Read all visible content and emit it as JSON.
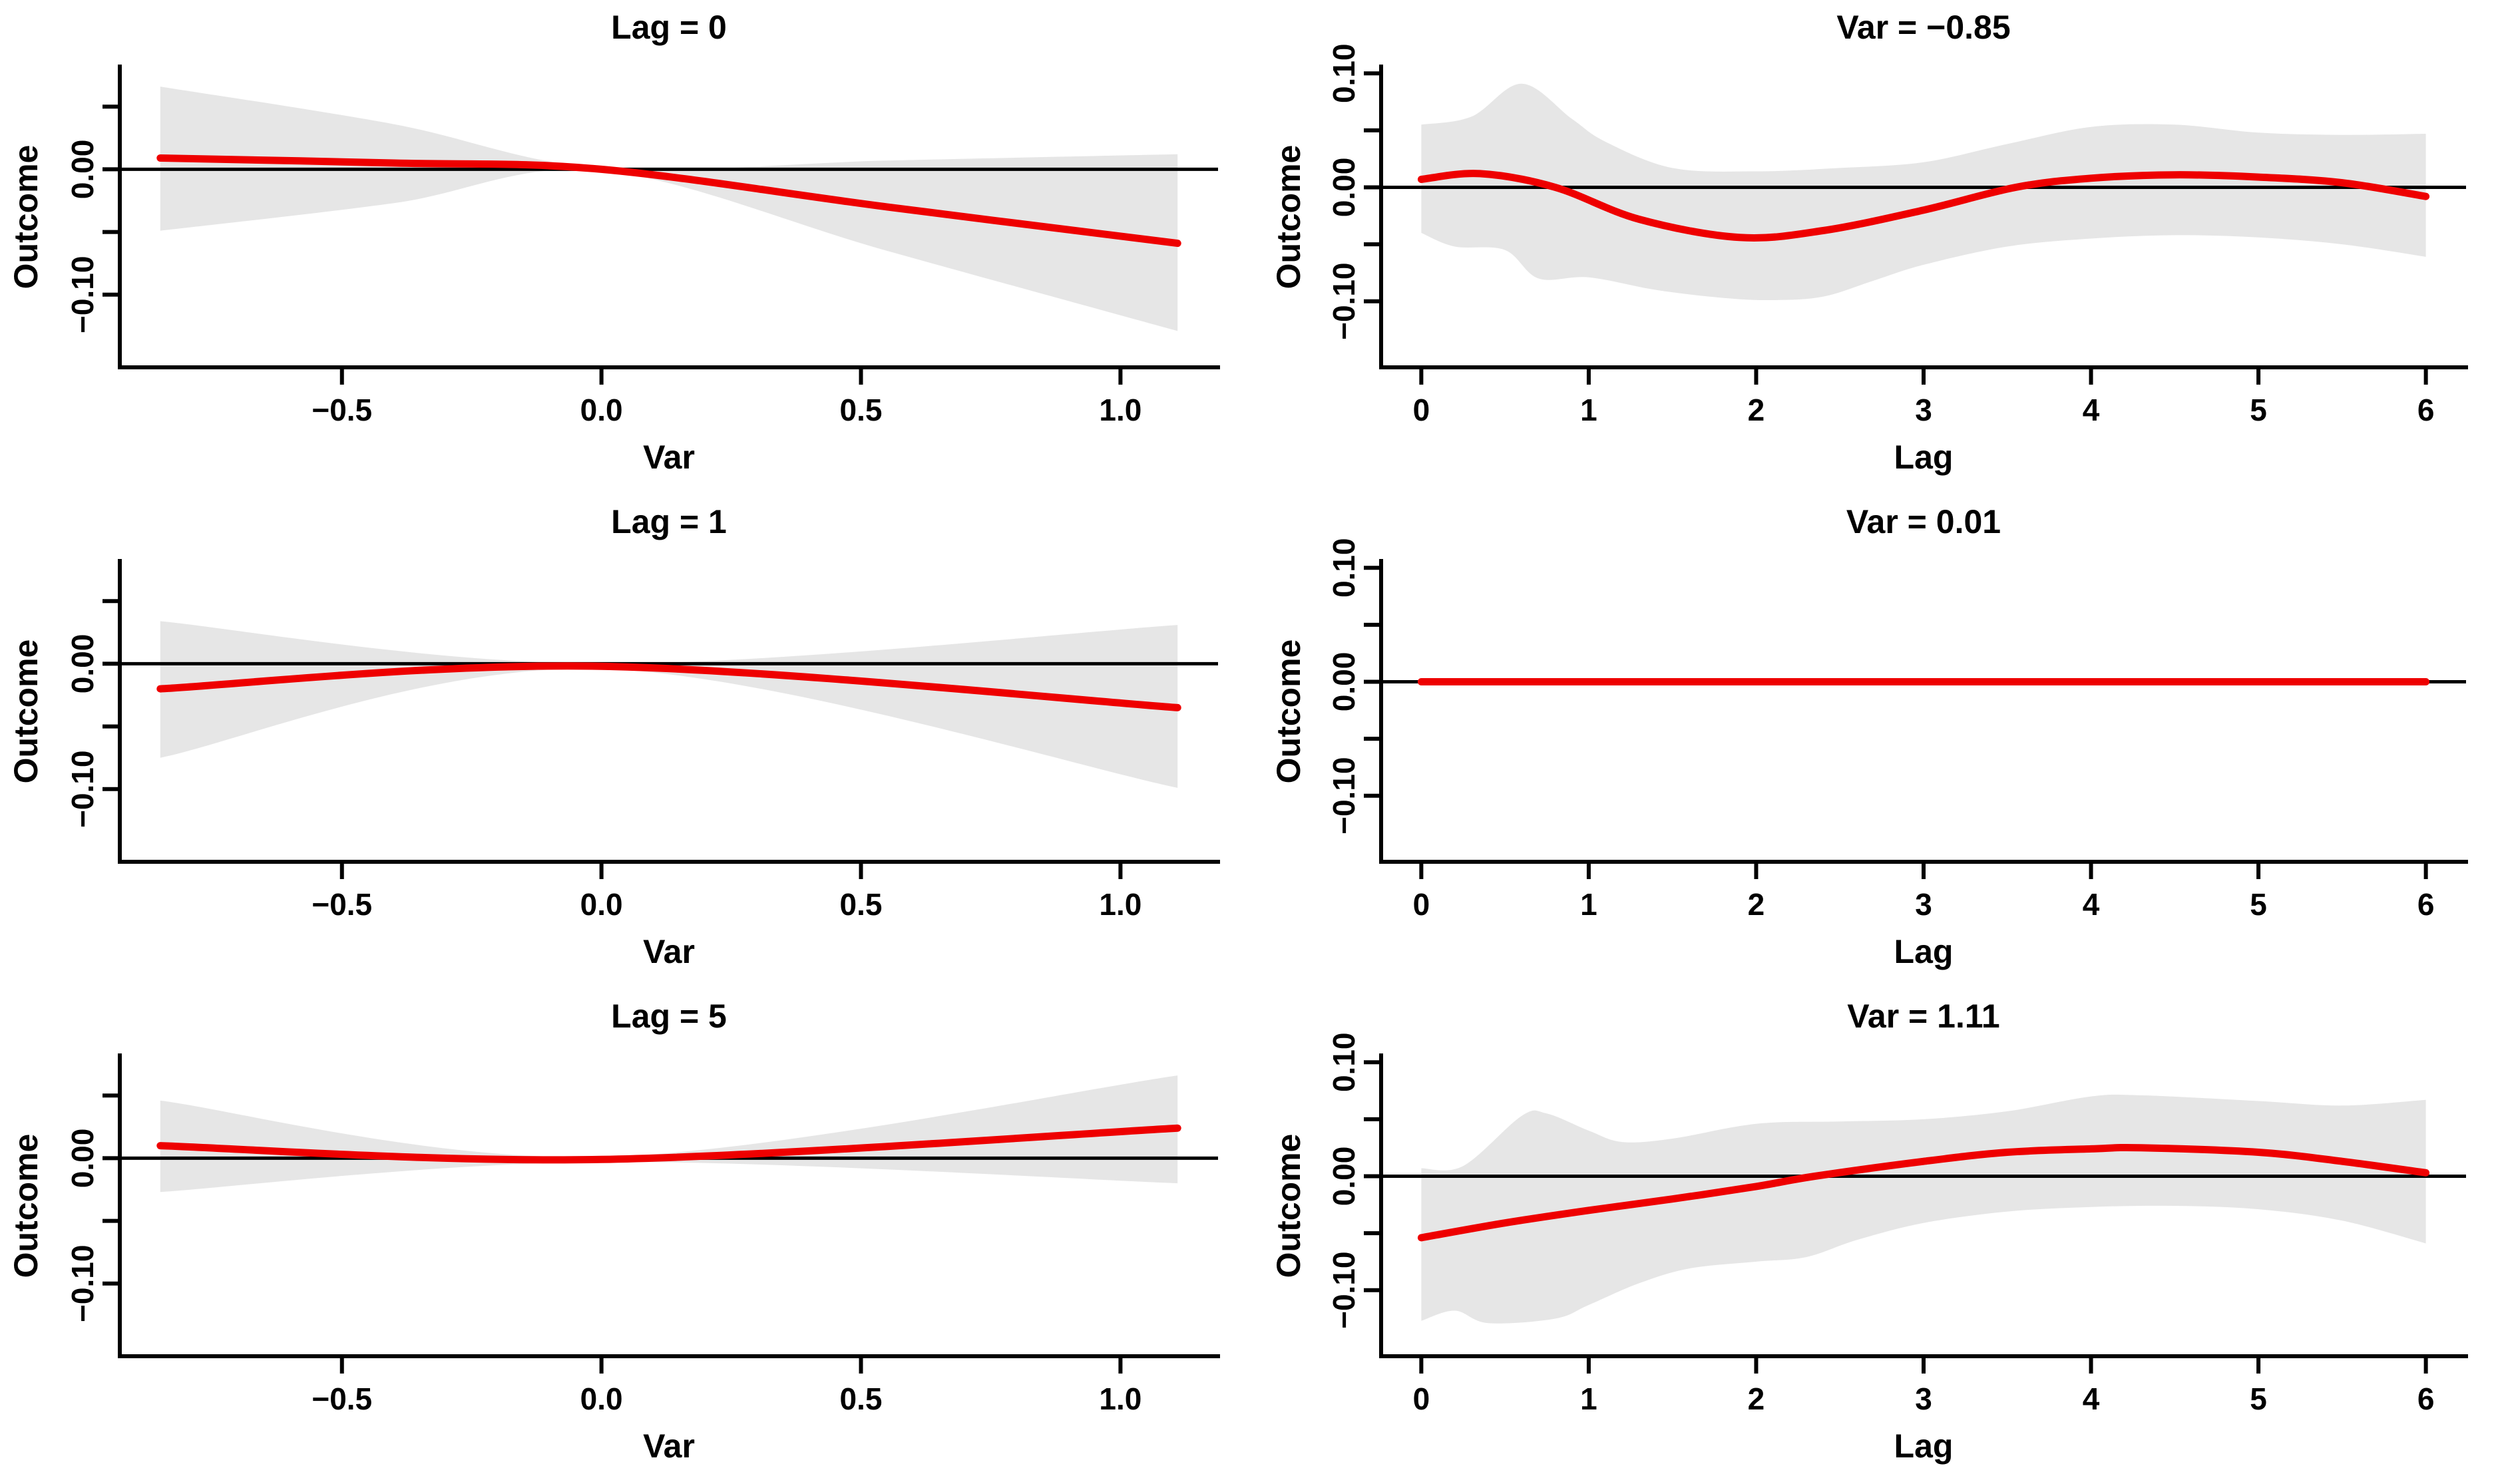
{
  "figure": {
    "background": "#FFFFFF",
    "colors": {
      "effect_line": "#EE0000",
      "confidence_band": "#E6E6E6",
      "axis": "#000000",
      "zero_line": "#000000",
      "text": "#000000"
    },
    "description": "3x2 panel figure of distributed lag model predictions: left column shows Outcome vs Var at fixed lags, right column shows Outcome vs Lag at fixed Var values, each with red effect curve and gray confidence band around a zero reference line"
  },
  "chart_data": [
    {
      "type": "line",
      "title": "Lag = 0",
      "xlabel": "Var",
      "ylabel": "Outcome",
      "xlim": [
        -0.928,
        1.188
      ],
      "ylim": [
        -0.158,
        0.082
      ],
      "x_ticks": [
        {
          "v": -0.5,
          "label": "−0.5"
        },
        {
          "v": 0.0,
          "label": "0.0"
        },
        {
          "v": 0.5,
          "label": "0.5"
        },
        {
          "v": 1.0,
          "label": "1.0"
        }
      ],
      "y_ticks": [
        {
          "v": 0.05,
          "label": ""
        },
        {
          "v": 0.0,
          "label": "0.00"
        },
        {
          "v": -0.05,
          "label": ""
        },
        {
          "v": -0.1,
          "label": "−0.10"
        }
      ],
      "zero_line": 0,
      "line": [
        [
          -0.85,
          0.009
        ],
        [
          -0.4,
          0.005
        ],
        [
          0,
          0.0
        ],
        [
          0.55,
          -0.03
        ],
        [
          1.11,
          -0.059
        ]
      ],
      "band_upper": [
        [
          -0.85,
          0.066
        ],
        [
          -0.4,
          0.036
        ],
        [
          0,
          0.001
        ],
        [
          0.55,
          0.007
        ],
        [
          1.11,
          0.012
        ]
      ],
      "band_lower": [
        [
          -0.85,
          -0.049
        ],
        [
          -0.4,
          -0.027
        ],
        [
          0,
          -0.001
        ],
        [
          0.55,
          -0.065
        ],
        [
          1.11,
          -0.129
        ]
      ]
    },
    {
      "type": "line",
      "title": "Var = −0.85",
      "xlabel": "Lag",
      "ylabel": "Outcome",
      "xlim": [
        -0.24,
        6.24
      ],
      "ylim": [
        -0.158,
        0.106
      ],
      "x_ticks": [
        {
          "v": 0,
          "label": "0"
        },
        {
          "v": 1,
          "label": "1"
        },
        {
          "v": 2,
          "label": "2"
        },
        {
          "v": 3,
          "label": "3"
        },
        {
          "v": 4,
          "label": "4"
        },
        {
          "v": 5,
          "label": "5"
        },
        {
          "v": 6,
          "label": "6"
        }
      ],
      "y_ticks": [
        {
          "v": 0.1,
          "label": "0.10"
        },
        {
          "v": 0.05,
          "label": ""
        },
        {
          "v": 0.0,
          "label": "0.00"
        },
        {
          "v": -0.05,
          "label": ""
        },
        {
          "v": -0.1,
          "label": "−0.10"
        }
      ],
      "zero_line": 0,
      "line": [
        [
          0,
          0.007
        ],
        [
          0.35,
          0.012
        ],
        [
          0.8,
          0.0
        ],
        [
          1.3,
          -0.028
        ],
        [
          1.9,
          -0.044
        ],
        [
          2.4,
          -0.038
        ],
        [
          3,
          -0.02
        ],
        [
          3.55,
          0.0
        ],
        [
          4,
          0.008
        ],
        [
          4.5,
          0.011
        ],
        [
          5,
          0.009
        ],
        [
          5.5,
          0.004
        ],
        [
          6,
          -0.008
        ]
      ],
      "band_upper": [
        [
          0,
          0.055
        ],
        [
          0.3,
          0.062
        ],
        [
          0.6,
          0.091
        ],
        [
          0.9,
          0.06
        ],
        [
          1.1,
          0.04
        ],
        [
          1.5,
          0.017
        ],
        [
          2,
          0.014
        ],
        [
          2.5,
          0.017
        ],
        [
          3,
          0.022
        ],
        [
          3.5,
          0.038
        ],
        [
          4,
          0.053
        ],
        [
          4.5,
          0.055
        ],
        [
          5,
          0.048
        ],
        [
          5.5,
          0.046
        ],
        [
          6,
          0.047
        ]
      ],
      "band_lower": [
        [
          0,
          -0.04
        ],
        [
          0.2,
          -0.052
        ],
        [
          0.5,
          -0.055
        ],
        [
          0.7,
          -0.08
        ],
        [
          1,
          -0.079
        ],
        [
          1.4,
          -0.09
        ],
        [
          1.8,
          -0.097
        ],
        [
          2.1,
          -0.099
        ],
        [
          2.4,
          -0.096
        ],
        [
          2.7,
          -0.082
        ],
        [
          3,
          -0.068
        ],
        [
          3.5,
          -0.052
        ],
        [
          4,
          -0.045
        ],
        [
          4.5,
          -0.042
        ],
        [
          5,
          -0.044
        ],
        [
          5.5,
          -0.05
        ],
        [
          6,
          -0.061
        ]
      ]
    },
    {
      "type": "line",
      "title": "Lag = 1",
      "xlabel": "Var",
      "ylabel": "Outcome",
      "xlim": [
        -0.928,
        1.188
      ],
      "ylim": [
        -0.158,
        0.082
      ],
      "x_ticks": [
        {
          "v": -0.5,
          "label": "−0.5"
        },
        {
          "v": 0.0,
          "label": "0.0"
        },
        {
          "v": 0.5,
          "label": "0.5"
        },
        {
          "v": 1.0,
          "label": "1.0"
        }
      ],
      "y_ticks": [
        {
          "v": 0.05,
          "label": ""
        },
        {
          "v": 0.0,
          "label": "0.00"
        },
        {
          "v": -0.05,
          "label": ""
        },
        {
          "v": -0.1,
          "label": "−0.10"
        }
      ],
      "zero_line": 0,
      "line": [
        [
          -0.85,
          -0.02
        ],
        [
          0,
          -0.002
        ],
        [
          1.11,
          -0.035
        ]
      ],
      "band_upper": [
        [
          -0.85,
          0.034
        ],
        [
          0,
          0.0
        ],
        [
          1.11,
          0.031
        ]
      ],
      "band_lower": [
        [
          -0.85,
          -0.075
        ],
        [
          0,
          -0.004
        ],
        [
          1.11,
          -0.099
        ]
      ]
    },
    {
      "type": "line",
      "title": "Var = 0.01",
      "xlabel": "Lag",
      "ylabel": "Outcome",
      "xlim": [
        -0.24,
        6.24
      ],
      "ylim": [
        -0.158,
        0.106
      ],
      "x_ticks": [
        {
          "v": 0,
          "label": "0"
        },
        {
          "v": 1,
          "label": "1"
        },
        {
          "v": 2,
          "label": "2"
        },
        {
          "v": 3,
          "label": "3"
        },
        {
          "v": 4,
          "label": "4"
        },
        {
          "v": 5,
          "label": "5"
        },
        {
          "v": 6,
          "label": "6"
        }
      ],
      "y_ticks": [
        {
          "v": 0.1,
          "label": "0.10"
        },
        {
          "v": 0.05,
          "label": ""
        },
        {
          "v": 0.0,
          "label": "0.00"
        },
        {
          "v": -0.05,
          "label": ""
        },
        {
          "v": -0.1,
          "label": "−0.10"
        }
      ],
      "zero_line": 0,
      "line": [
        [
          0,
          0.0
        ],
        [
          1.5,
          0.0
        ],
        [
          3,
          0.0
        ],
        [
          4.5,
          0.0
        ],
        [
          6,
          0.0
        ]
      ],
      "band_upper": [
        [
          0,
          0.001
        ],
        [
          3,
          0.001
        ],
        [
          6,
          0.001
        ]
      ],
      "band_lower": [
        [
          0,
          -0.001
        ],
        [
          3,
          -0.001
        ],
        [
          6,
          -0.001
        ]
      ]
    },
    {
      "type": "line",
      "title": "Lag = 5",
      "xlabel": "Var",
      "ylabel": "Outcome",
      "xlim": [
        -0.928,
        1.188
      ],
      "ylim": [
        -0.158,
        0.082
      ],
      "x_ticks": [
        {
          "v": -0.5,
          "label": "−0.5"
        },
        {
          "v": 0.0,
          "label": "0.0"
        },
        {
          "v": 0.5,
          "label": "0.5"
        },
        {
          "v": 1.0,
          "label": "1.0"
        }
      ],
      "y_ticks": [
        {
          "v": 0.05,
          "label": ""
        },
        {
          "v": 0.0,
          "label": "0.00"
        },
        {
          "v": -0.05,
          "label": ""
        },
        {
          "v": -0.1,
          "label": "−0.10"
        }
      ],
      "zero_line": 0,
      "line": [
        [
          -0.85,
          0.01
        ],
        [
          0,
          -0.001
        ],
        [
          1.11,
          0.024
        ]
      ],
      "band_upper": [
        [
          -0.85,
          0.046
        ],
        [
          0,
          0.001
        ],
        [
          1.11,
          0.066
        ]
      ],
      "band_lower": [
        [
          -0.85,
          -0.027
        ],
        [
          0,
          -0.003
        ],
        [
          1.11,
          -0.02
        ]
      ]
    },
    {
      "type": "line",
      "title": "Var = 1.11",
      "xlabel": "Lag",
      "ylabel": "Outcome",
      "xlim": [
        -0.24,
        6.24
      ],
      "ylim": [
        -0.158,
        0.106
      ],
      "x_ticks": [
        {
          "v": 0,
          "label": "0"
        },
        {
          "v": 1,
          "label": "1"
        },
        {
          "v": 2,
          "label": "2"
        },
        {
          "v": 3,
          "label": "3"
        },
        {
          "v": 4,
          "label": "4"
        },
        {
          "v": 5,
          "label": "5"
        },
        {
          "v": 6,
          "label": "6"
        }
      ],
      "y_ticks": [
        {
          "v": 0.1,
          "label": "0.10"
        },
        {
          "v": 0.05,
          "label": ""
        },
        {
          "v": 0.0,
          "label": "0.00"
        },
        {
          "v": -0.05,
          "label": ""
        },
        {
          "v": -0.1,
          "label": "−0.10"
        }
      ],
      "zero_line": 0,
      "line": [
        [
          0,
          -0.054
        ],
        [
          0.5,
          -0.041
        ],
        [
          1,
          -0.03
        ],
        [
          1.5,
          -0.02
        ],
        [
          2,
          -0.009
        ],
        [
          2.35,
          0.0
        ],
        [
          3,
          0.013
        ],
        [
          3.5,
          0.021
        ],
        [
          4,
          0.024
        ],
        [
          4.3,
          0.025
        ],
        [
          5,
          0.021
        ],
        [
          5.5,
          0.013
        ],
        [
          6,
          0.003
        ]
      ],
      "band_upper": [
        [
          0,
          0.007
        ],
        [
          0.25,
          0.009
        ],
        [
          0.6,
          0.053
        ],
        [
          0.75,
          0.055
        ],
        [
          1,
          0.04
        ],
        [
          1.2,
          0.03
        ],
        [
          1.5,
          0.033
        ],
        [
          2,
          0.046
        ],
        [
          2.5,
          0.048
        ],
        [
          3,
          0.05
        ],
        [
          3.5,
          0.057
        ],
        [
          4,
          0.07
        ],
        [
          4.3,
          0.071
        ],
        [
          5,
          0.066
        ],
        [
          5.5,
          0.062
        ],
        [
          6,
          0.067
        ]
      ],
      "band_lower": [
        [
          0,
          -0.127
        ],
        [
          0.2,
          -0.118
        ],
        [
          0.4,
          -0.129
        ],
        [
          0.8,
          -0.125
        ],
        [
          1,
          -0.113
        ],
        [
          1.3,
          -0.094
        ],
        [
          1.6,
          -0.081
        ],
        [
          2,
          -0.075
        ],
        [
          2.3,
          -0.071
        ],
        [
          2.6,
          -0.056
        ],
        [
          3,
          -0.041
        ],
        [
          3.5,
          -0.031
        ],
        [
          4,
          -0.027
        ],
        [
          4.5,
          -0.026
        ],
        [
          5,
          -0.029
        ],
        [
          5.5,
          -0.039
        ],
        [
          6,
          -0.059
        ]
      ]
    }
  ]
}
